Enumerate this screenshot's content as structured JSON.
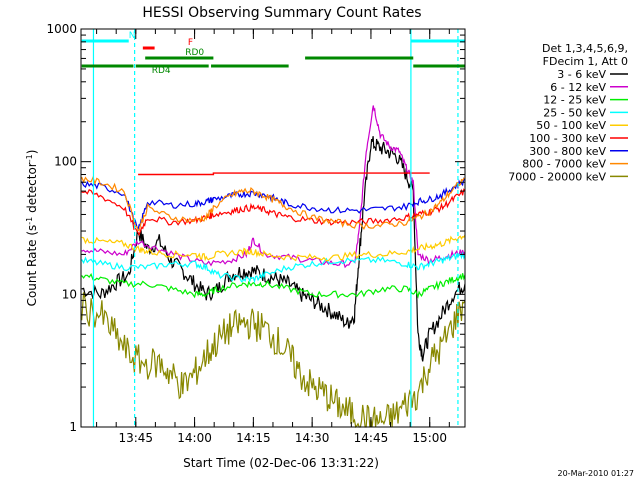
{
  "chart_data": {
    "type": "line",
    "title": "HESSI Observing Summary Count Rates",
    "xlabel": "Start Time (02-Dec-06 13:31:22)",
    "ylabel_main": "Count Rate (s",
    "ylabel_sup1": "-1",
    "ylabel_mid": " detector",
    "ylabel_sup2": "-1",
    "ylabel_end": ")",
    "y_scale": "log",
    "ylim": [
      1,
      1000
    ],
    "xlim_minutes": [
      13.517,
      15.15
    ],
    "x_ticks": [
      {
        "label": "13:45",
        "hour": 13.75
      },
      {
        "label": "14:00",
        "hour": 14.0
      },
      {
        "label": "14:15",
        "hour": 14.25
      },
      {
        "label": "14:30",
        "hour": 14.5
      },
      {
        "label": "14:45",
        "hour": 14.75
      },
      {
        "label": "15:00",
        "hour": 15.0
      }
    ],
    "y_ticks": [
      {
        "label": "1",
        "value": 1
      },
      {
        "label": "10",
        "value": 10
      },
      {
        "label": "100",
        "value": 100
      },
      {
        "label": "1000",
        "value": 1000
      }
    ],
    "legend_header": [
      "Det 1,3,4,5,6,9,",
      "FDecim 1, Att 0"
    ],
    "legend_position": "right",
    "series": [
      {
        "name": "3 - 6 keV",
        "color": "#000000",
        "points": [
          [
            13.52,
            11
          ],
          [
            13.6,
            10
          ],
          [
            13.66,
            12
          ],
          [
            13.72,
            14
          ],
          [
            13.76,
            30
          ],
          [
            13.8,
            22
          ],
          [
            13.85,
            25
          ],
          [
            13.9,
            18
          ],
          [
            13.95,
            15
          ],
          [
            14.0,
            12
          ],
          [
            14.05,
            10
          ],
          [
            14.1,
            11
          ],
          [
            14.15,
            14
          ],
          [
            14.2,
            15
          ],
          [
            14.25,
            15
          ],
          [
            14.3,
            14
          ],
          [
            14.35,
            13
          ],
          [
            14.4,
            12
          ],
          [
            14.45,
            10
          ],
          [
            14.5,
            9
          ],
          [
            14.55,
            8
          ],
          [
            14.6,
            7
          ],
          [
            14.65,
            6
          ],
          [
            14.68,
            7
          ],
          [
            14.7,
            20
          ],
          [
            14.72,
            50
          ],
          [
            14.75,
            140
          ],
          [
            14.78,
            130
          ],
          [
            14.82,
            120
          ],
          [
            14.86,
            110
          ],
          [
            14.9,
            80
          ],
          [
            14.93,
            60
          ],
          [
            14.95,
            5
          ],
          [
            14.97,
            3.5
          ],
          [
            15.0,
            5
          ],
          [
            15.05,
            7
          ],
          [
            15.1,
            10
          ],
          [
            15.15,
            12
          ]
        ]
      },
      {
        "name": "6 - 12 keV",
        "color": "#cc00cc",
        "points": [
          [
            13.52,
            22
          ],
          [
            13.6,
            21
          ],
          [
            13.7,
            20
          ],
          [
            13.76,
            25
          ],
          [
            13.85,
            22
          ],
          [
            13.95,
            19
          ],
          [
            14.05,
            17
          ],
          [
            14.15,
            18
          ],
          [
            14.22,
            20
          ],
          [
            14.25,
            26
          ],
          [
            14.3,
            20
          ],
          [
            14.4,
            19
          ],
          [
            14.5,
            18
          ],
          [
            14.6,
            17
          ],
          [
            14.68,
            17
          ],
          [
            14.7,
            30
          ],
          [
            14.73,
            120
          ],
          [
            14.76,
            270
          ],
          [
            14.79,
            160
          ],
          [
            14.83,
            130
          ],
          [
            14.87,
            120
          ],
          [
            14.9,
            90
          ],
          [
            14.93,
            70
          ],
          [
            14.95,
            20
          ],
          [
            15.0,
            18
          ],
          [
            15.05,
            19
          ],
          [
            15.1,
            20
          ],
          [
            15.15,
            21
          ]
        ]
      },
      {
        "name": "12 - 25 keV",
        "color": "#00ee00",
        "points": [
          [
            13.52,
            14
          ],
          [
            13.6,
            13
          ],
          [
            13.7,
            12
          ],
          [
            13.8,
            12
          ],
          [
            13.9,
            11
          ],
          [
            14.0,
            10
          ],
          [
            14.05,
            10
          ],
          [
            14.1,
            11
          ],
          [
            14.2,
            12
          ],
          [
            14.25,
            12
          ],
          [
            14.3,
            12
          ],
          [
            14.4,
            11
          ],
          [
            14.5,
            10
          ],
          [
            14.6,
            10
          ],
          [
            14.7,
            10
          ],
          [
            14.8,
            11
          ],
          [
            14.9,
            11
          ],
          [
            14.95,
            10
          ],
          [
            15.0,
            11
          ],
          [
            15.05,
            12
          ],
          [
            15.1,
            13
          ],
          [
            15.15,
            14
          ]
        ]
      },
      {
        "name": "25 - 50 keV",
        "color": "#00ffff",
        "points": [
          [
            13.52,
            18
          ],
          [
            13.6,
            17
          ],
          [
            13.7,
            16
          ],
          [
            13.8,
            16
          ],
          [
            13.9,
            17
          ],
          [
            14.0,
            17
          ],
          [
            14.05,
            16
          ],
          [
            14.1,
            14
          ],
          [
            14.2,
            13
          ],
          [
            14.25,
            13
          ],
          [
            14.3,
            14
          ],
          [
            14.4,
            16
          ],
          [
            14.5,
            17
          ],
          [
            14.6,
            18
          ],
          [
            14.7,
            18
          ],
          [
            14.8,
            18
          ],
          [
            14.9,
            17
          ],
          [
            14.95,
            16
          ],
          [
            15.0,
            17
          ],
          [
            15.05,
            18
          ],
          [
            15.1,
            19
          ],
          [
            15.15,
            20
          ]
        ]
      },
      {
        "name": "50 - 100 keV",
        "color": "#ffcc00",
        "points": [
          [
            13.52,
            26
          ],
          [
            13.6,
            25
          ],
          [
            13.7,
            24
          ],
          [
            13.76,
            22
          ],
          [
            13.8,
            21
          ],
          [
            13.9,
            20
          ],
          [
            14.0,
            20
          ],
          [
            14.05,
            19
          ],
          [
            14.1,
            20
          ],
          [
            14.2,
            21
          ],
          [
            14.25,
            21
          ],
          [
            14.3,
            20
          ],
          [
            14.4,
            19
          ],
          [
            14.5,
            19
          ],
          [
            14.6,
            19
          ],
          [
            14.7,
            20
          ],
          [
            14.8,
            20
          ],
          [
            14.9,
            21
          ],
          [
            14.95,
            22
          ],
          [
            15.0,
            23
          ],
          [
            15.05,
            24
          ],
          [
            15.1,
            26
          ],
          [
            15.15,
            28
          ]
        ]
      },
      {
        "name": "100 - 300 keV",
        "color": "#ff0000",
        "points": [
          [
            13.52,
            60
          ],
          [
            13.6,
            55
          ],
          [
            13.7,
            45
          ],
          [
            13.76,
            28
          ],
          [
            13.8,
            38
          ],
          [
            13.9,
            35
          ],
          [
            14.0,
            36
          ],
          [
            14.05,
            38
          ],
          [
            14.08,
            40
          ],
          [
            14.15,
            42
          ],
          [
            14.2,
            44
          ],
          [
            14.25,
            45
          ],
          [
            14.3,
            43
          ],
          [
            14.35,
            40
          ],
          [
            14.4,
            38
          ],
          [
            14.5,
            36
          ],
          [
            14.6,
            35
          ],
          [
            14.7,
            35
          ],
          [
            14.8,
            36
          ],
          [
            14.9,
            38
          ],
          [
            14.95,
            40
          ],
          [
            15.0,
            42
          ],
          [
            15.05,
            45
          ],
          [
            15.1,
            52
          ],
          [
            15.15,
            60
          ]
        ]
      },
      {
        "name": "300 - 800 keV",
        "color": "#0000ee",
        "points": [
          [
            13.52,
            68
          ],
          [
            13.6,
            65
          ],
          [
            13.7,
            58
          ],
          [
            13.76,
            30
          ],
          [
            13.8,
            50
          ],
          [
            13.9,
            47
          ],
          [
            14.0,
            48
          ],
          [
            14.05,
            50
          ],
          [
            14.08,
            52
          ],
          [
            14.15,
            55
          ],
          [
            14.2,
            57
          ],
          [
            14.25,
            58
          ],
          [
            14.3,
            56
          ],
          [
            14.35,
            52
          ],
          [
            14.4,
            48
          ],
          [
            14.5,
            45
          ],
          [
            14.6,
            43
          ],
          [
            14.7,
            43
          ],
          [
            14.8,
            44
          ],
          [
            14.9,
            46
          ],
          [
            14.95,
            50
          ],
          [
            15.0,
            52
          ],
          [
            15.05,
            56
          ],
          [
            15.1,
            64
          ],
          [
            15.15,
            72
          ]
        ]
      },
      {
        "name": "800 - 7000 keV",
        "color": "#ff8800",
        "points": [
          [
            13.52,
            75
          ],
          [
            13.6,
            70
          ],
          [
            13.7,
            60
          ],
          [
            13.76,
            30
          ],
          [
            13.8,
            45
          ],
          [
            13.9,
            38
          ],
          [
            14.0,
            36
          ],
          [
            14.05,
            38
          ],
          [
            14.08,
            45
          ],
          [
            14.15,
            55
          ],
          [
            14.2,
            60
          ],
          [
            14.25,
            60
          ],
          [
            14.3,
            55
          ],
          [
            14.35,
            50
          ],
          [
            14.4,
            45
          ],
          [
            14.5,
            38
          ],
          [
            14.6,
            35
          ],
          [
            14.7,
            33
          ],
          [
            14.8,
            33
          ],
          [
            14.9,
            35
          ],
          [
            14.95,
            38
          ],
          [
            15.0,
            42
          ],
          [
            15.05,
            50
          ],
          [
            15.1,
            62
          ],
          [
            15.15,
            75
          ]
        ]
      },
      {
        "name": "7000 - 20000 keV",
        "color": "#888800",
        "points": [
          [
            13.52,
            8
          ],
          [
            13.6,
            7
          ],
          [
            13.66,
            5
          ],
          [
            13.72,
            3.5
          ],
          [
            13.78,
            3
          ],
          [
            13.85,
            3
          ],
          [
            13.9,
            2.5
          ],
          [
            13.95,
            2
          ],
          [
            14.0,
            2.5
          ],
          [
            14.05,
            3.5
          ],
          [
            14.1,
            4.5
          ],
          [
            14.15,
            5.5
          ],
          [
            14.2,
            6
          ],
          [
            14.25,
            6
          ],
          [
            14.3,
            5.5
          ],
          [
            14.35,
            4.5
          ],
          [
            14.4,
            3.5
          ],
          [
            14.45,
            2.5
          ],
          [
            14.5,
            2
          ],
          [
            14.55,
            1.8
          ],
          [
            14.6,
            1.5
          ],
          [
            14.65,
            1.3
          ],
          [
            14.7,
            1.2
          ],
          [
            14.75,
            1.1
          ],
          [
            14.8,
            1.1
          ],
          [
            14.85,
            1.2
          ],
          [
            14.9,
            1.5
          ],
          [
            14.95,
            1.8
          ],
          [
            15.0,
            3
          ],
          [
            15.05,
            4
          ],
          [
            15.1,
            6
          ],
          [
            15.15,
            9
          ]
        ]
      }
    ],
    "red_levels": [
      {
        "flag": "red",
        "points": [
          [
            13.76,
            80
          ],
          [
            14.08,
            80
          ],
          [
            14.08,
            82
          ],
          [
            14.5,
            82
          ],
          [
            14.5,
            82
          ],
          [
            15.0,
            82
          ]
        ]
      }
    ],
    "vertical_lines": [
      {
        "hour": 13.57,
        "color": "#00ffff",
        "style": "solid"
      },
      {
        "hour": 13.745,
        "color": "#00ffff",
        "style": "dashed"
      },
      {
        "hour": 14.92,
        "color": "#00ffff",
        "style": "solid"
      },
      {
        "hour": 15.12,
        "color": "#00ffff",
        "style": "dashed"
      }
    ],
    "flag_bars": [
      {
        "label": "N",
        "color": "#00ffff",
        "segments": [
          [
            13.52,
            13.72
          ],
          [
            14.92,
            15.15
          ]
        ],
        "level": 0
      },
      {
        "label": "F",
        "color": "#ff0000",
        "segments": [
          [
            13.78,
            13.83
          ]
        ],
        "level": 1
      },
      {
        "label": "RD0",
        "color": "#008800",
        "segments": [
          [
            13.79,
            14.08
          ],
          [
            14.47,
            14.93
          ]
        ],
        "level": 2
      },
      {
        "label": "RD4",
        "color": "#008800",
        "segments": [
          [
            13.52,
            13.74
          ],
          [
            13.75,
            14.06
          ],
          [
            14.07,
            14.4
          ],
          [
            14.93,
            15.15
          ]
        ],
        "level": 3
      }
    ]
  },
  "timestamp": "20-Mar-2010 01:27"
}
